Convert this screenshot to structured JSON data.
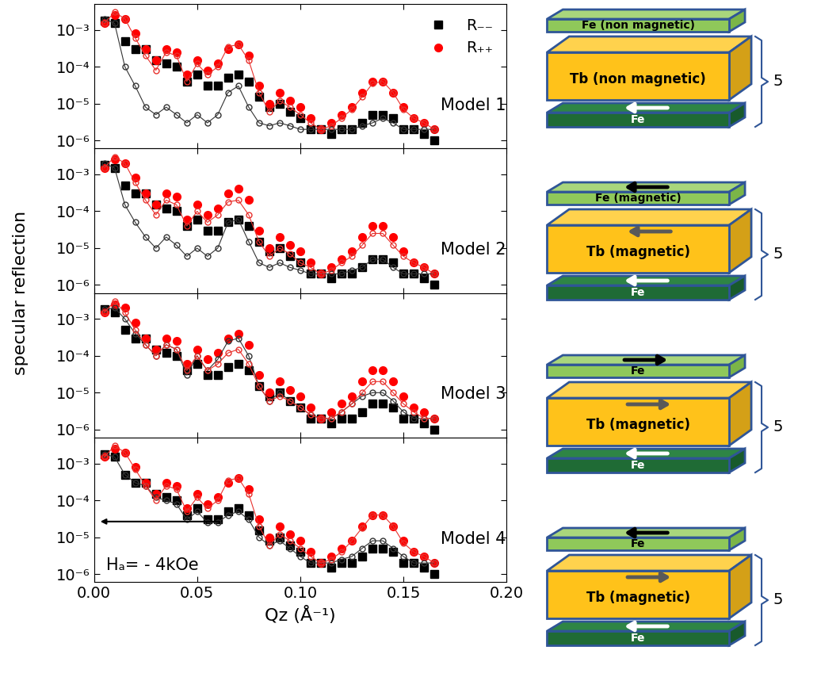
{
  "figure": {
    "ylabel": "specular reflection"
  },
  "chart_data": [
    {
      "type": "scatter",
      "annotation": "Model 1",
      "log": "y",
      "legend": "upper right",
      "tick_labels": "y",
      "xlim": [
        0,
        0.2
      ],
      "ylim": [
        6e-07,
        0.005
      ],
      "xticks": [
        {
          "value": 0,
          "label": "0.00"
        },
        {
          "value": 0.05,
          "label": "0.05"
        },
        {
          "value": 0.1,
          "label": "0.10"
        },
        {
          "value": 0.15,
          "label": "0.15"
        },
        {
          "value": 0.2,
          "label": "0.20"
        }
      ],
      "yticks": [
        {
          "value": 1e-06,
          "label": "10⁻⁶"
        },
        {
          "value": 1e-05,
          "label": "10⁻⁵"
        },
        {
          "value": 0.0001,
          "label": "10⁻⁴"
        },
        {
          "value": 0.001,
          "label": "10⁻³"
        }
      ],
      "x": [
        0.005,
        0.01,
        0.015,
        0.02,
        0.025,
        0.03,
        0.035,
        0.04,
        0.045,
        0.05,
        0.055,
        0.06,
        0.065,
        0.07,
        0.075,
        0.08,
        0.085,
        0.09,
        0.095,
        0.1,
        0.105,
        0.11,
        0.115,
        0.12,
        0.125,
        0.13,
        0.135,
        0.14,
        0.145,
        0.15,
        0.155,
        0.16,
        0.165
      ],
      "series": [
        {
          "name": "R₋₋",
          "color": "#000000",
          "marker": "square",
          "line_style": "none",
          "values": [
            0.0018,
            0.0015,
            0.0005,
            0.0003,
            0.0003,
            0.00015,
            0.00012,
            0.0001,
            4e-05,
            6e-05,
            3e-05,
            3e-05,
            5e-05,
            6e-05,
            4e-05,
            1.5e-05,
            8e-06,
            1e-05,
            6e-06,
            4e-06,
            2e-06,
            2e-06,
            1.5e-06,
            2e-06,
            2e-06,
            3e-06,
            5e-06,
            5e-06,
            4e-06,
            2e-06,
            2e-06,
            1.5e-06,
            1e-06
          ]
        },
        {
          "name": "R₊₊",
          "color": "#ff0000",
          "marker": "circle",
          "line_style": "none",
          "values": [
            0.0015,
            0.0025,
            0.002,
            0.0008,
            0.0003,
            0.00015,
            0.0003,
            0.00025,
            6e-05,
            0.00015,
            8e-05,
            0.00012,
            0.0003,
            0.0004,
            0.0002,
            3e-05,
            1e-05,
            2e-05,
            1.2e-05,
            8e-06,
            4e-06,
            2e-06,
            3e-06,
            5e-06,
            8e-06,
            2e-05,
            4e-05,
            4e-05,
            2e-05,
            8e-06,
            4e-06,
            3e-06,
            2e-06
          ]
        },
        {
          "color": "#333333",
          "marker": "open circle",
          "line_style": "solid",
          "values": [
            0.002,
            0.0015,
            0.0001,
            3e-05,
            8e-06,
            5e-06,
            8e-06,
            5e-06,
            3e-06,
            5e-06,
            3e-06,
            5e-06,
            2e-05,
            3e-05,
            8e-06,
            3e-06,
            2.5e-06,
            3e-06,
            2.5e-06,
            2e-06,
            2e-06,
            2e-06,
            2e-06,
            2e-06,
            2e-06,
            2.5e-06,
            3e-06,
            4e-06,
            3e-06,
            2e-06,
            2e-06,
            2e-06,
            2e-06
          ]
        },
        {
          "color": "#e8322e",
          "marker": "open circle",
          "line_style": "solid",
          "values": [
            0.0015,
            0.003,
            0.002,
            0.0006,
            0.0002,
            8e-05,
            0.00025,
            0.0002,
            4e-05,
            0.00012,
            6e-05,
            0.0001,
            0.00035,
            0.0004,
            0.00015,
            2e-05,
            6e-06,
            1.2e-05,
            8e-06,
            5e-06,
            3e-06,
            2e-06,
            2.5e-06,
            4e-06,
            7e-06,
            1.5e-05,
            3.5e-05,
            4e-05,
            2e-05,
            7e-06,
            4e-06,
            3e-06,
            2e-06
          ]
        }
      ]
    },
    {
      "type": "scatter",
      "annotation": "Model 2",
      "log": "y",
      "tick_labels": "y",
      "xlim": [
        0,
        0.2
      ],
      "ylim": [
        6e-07,
        0.005
      ],
      "xticks": [
        {
          "value": 0,
          "label": "0.00"
        },
        {
          "value": 0.05,
          "label": "0.05"
        },
        {
          "value": 0.1,
          "label": "0.10"
        },
        {
          "value": 0.15,
          "label": "0.15"
        },
        {
          "value": 0.2,
          "label": "0.20"
        }
      ],
      "yticks": [
        {
          "value": 1e-06,
          "label": "10⁻⁶"
        },
        {
          "value": 1e-05,
          "label": "10⁻⁵"
        },
        {
          "value": 0.0001,
          "label": "10⁻⁴"
        },
        {
          "value": 0.001,
          "label": "10⁻³"
        }
      ],
      "x": [
        0.005,
        0.01,
        0.015,
        0.02,
        0.025,
        0.03,
        0.035,
        0.04,
        0.045,
        0.05,
        0.055,
        0.06,
        0.065,
        0.07,
        0.075,
        0.08,
        0.085,
        0.09,
        0.095,
        0.1,
        0.105,
        0.11,
        0.115,
        0.12,
        0.125,
        0.13,
        0.135,
        0.14,
        0.145,
        0.15,
        0.155,
        0.16,
        0.165
      ],
      "series": [
        {
          "name": "R₋₋",
          "color": "#000000",
          "marker": "square",
          "line_style": "none",
          "values": [
            0.0018,
            0.0015,
            0.0005,
            0.0003,
            0.0003,
            0.00015,
            0.00012,
            0.0001,
            4e-05,
            6e-05,
            3e-05,
            3e-05,
            5e-05,
            6e-05,
            4e-05,
            1.5e-05,
            8e-06,
            1e-05,
            6e-06,
            4e-06,
            2e-06,
            2e-06,
            1.5e-06,
            2e-06,
            2e-06,
            3e-06,
            5e-06,
            5e-06,
            4e-06,
            2e-06,
            2e-06,
            1.5e-06,
            1e-06
          ]
        },
        {
          "name": "R₊₊",
          "color": "#ff0000",
          "marker": "circle",
          "line_style": "none",
          "values": [
            0.0015,
            0.0025,
            0.002,
            0.0008,
            0.0003,
            0.00015,
            0.0003,
            0.00025,
            6e-05,
            0.00015,
            8e-05,
            0.00012,
            0.0003,
            0.0004,
            0.0002,
            3e-05,
            1e-05,
            2e-05,
            1.2e-05,
            8e-06,
            4e-06,
            2e-06,
            3e-06,
            5e-06,
            8e-06,
            2e-05,
            4e-05,
            4e-05,
            2e-05,
            8e-06,
            4e-06,
            3e-06,
            2e-06
          ]
        },
        {
          "color": "#333333",
          "marker": "open circle",
          "line_style": "solid",
          "values": [
            0.002,
            0.0015,
            0.00015,
            5e-05,
            2e-05,
            1e-05,
            2e-05,
            1.2e-05,
            6e-06,
            1e-05,
            6e-06,
            1e-05,
            5e-05,
            6e-05,
            1.5e-05,
            4e-06,
            3e-06,
            4e-06,
            3e-06,
            2.5e-06,
            2e-06,
            2e-06,
            2e-06,
            2e-06,
            2.5e-06,
            3e-06,
            5e-06,
            5e-06,
            3e-06,
            2e-06,
            2e-06,
            2e-06,
            2e-06
          ]
        },
        {
          "color": "#e8322e",
          "marker": "open circle",
          "line_style": "solid",
          "values": [
            0.0015,
            0.003,
            0.002,
            0.0006,
            0.0002,
            8e-05,
            0.0002,
            0.00015,
            4e-05,
            0.0001,
            5e-05,
            8e-05,
            0.00018,
            0.0002,
            8e-05,
            1.5e-05,
            6e-06,
            1e-05,
            7e-06,
            4e-06,
            3e-06,
            2e-06,
            2.5e-06,
            4e-06,
            6e-06,
            1.2e-05,
            2.5e-05,
            2.5e-05,
            1.2e-05,
            6e-06,
            4e-06,
            3e-06,
            2e-06
          ]
        }
      ]
    },
    {
      "type": "scatter",
      "annotation": "Model 3",
      "log": "y",
      "tick_labels": "y",
      "xlim": [
        0,
        0.2
      ],
      "ylim": [
        6e-07,
        0.005
      ],
      "xticks": [
        {
          "value": 0,
          "label": "0.00"
        },
        {
          "value": 0.05,
          "label": "0.05"
        },
        {
          "value": 0.1,
          "label": "0.10"
        },
        {
          "value": 0.15,
          "label": "0.15"
        },
        {
          "value": 0.2,
          "label": "0.20"
        }
      ],
      "yticks": [
        {
          "value": 1e-06,
          "label": "10⁻⁶"
        },
        {
          "value": 1e-05,
          "label": "10⁻⁵"
        },
        {
          "value": 0.0001,
          "label": "10⁻⁴"
        },
        {
          "value": 0.001,
          "label": "10⁻³"
        }
      ],
      "x": [
        0.005,
        0.01,
        0.015,
        0.02,
        0.025,
        0.03,
        0.035,
        0.04,
        0.045,
        0.05,
        0.055,
        0.06,
        0.065,
        0.07,
        0.075,
        0.08,
        0.085,
        0.09,
        0.095,
        0.1,
        0.105,
        0.11,
        0.115,
        0.12,
        0.125,
        0.13,
        0.135,
        0.14,
        0.145,
        0.15,
        0.155,
        0.16,
        0.165
      ],
      "series": [
        {
          "name": "R₋₋",
          "color": "#000000",
          "marker": "square",
          "line_style": "none",
          "values": [
            0.0018,
            0.0015,
            0.0005,
            0.0003,
            0.0003,
            0.00015,
            0.00012,
            0.0001,
            4e-05,
            6e-05,
            3e-05,
            3e-05,
            5e-05,
            6e-05,
            4e-05,
            1.5e-05,
            8e-06,
            1e-05,
            6e-06,
            4e-06,
            2e-06,
            2e-06,
            1.5e-06,
            2e-06,
            2e-06,
            3e-06,
            5e-06,
            5e-06,
            4e-06,
            2e-06,
            2e-06,
            1.5e-06,
            1e-06
          ]
        },
        {
          "name": "R₊₊",
          "color": "#ff0000",
          "marker": "circle",
          "line_style": "none",
          "values": [
            0.0015,
            0.0025,
            0.002,
            0.0008,
            0.0003,
            0.00015,
            0.0003,
            0.00025,
            6e-05,
            0.00015,
            8e-05,
            0.00012,
            0.0003,
            0.0004,
            0.0002,
            3e-05,
            1e-05,
            2e-05,
            1.2e-05,
            8e-06,
            4e-06,
            2e-06,
            3e-06,
            5e-06,
            8e-06,
            2e-05,
            4e-05,
            4e-05,
            2e-05,
            8e-06,
            4e-06,
            3e-06,
            2e-06
          ]
        },
        {
          "color": "#333333",
          "marker": "open circle",
          "line_style": "solid",
          "values": [
            0.0018,
            0.002,
            0.001,
            0.0004,
            0.0002,
            0.0001,
            0.0002,
            0.00015,
            3e-05,
            0.0001,
            4e-05,
            8e-05,
            0.00025,
            0.0003,
            0.0001,
            1.5e-05,
            6e-06,
            1e-05,
            6e-06,
            4e-06,
            2.5e-06,
            2e-06,
            2e-06,
            3e-06,
            5e-06,
            8e-06,
            1e-05,
            1e-05,
            6e-06,
            3e-06,
            2e-06,
            2e-06,
            2e-06
          ]
        },
        {
          "color": "#e8322e",
          "marker": "open circle",
          "line_style": "solid",
          "values": [
            0.0015,
            0.003,
            0.0015,
            0.0005,
            0.0002,
            0.0001,
            0.0002,
            0.00015,
            4e-05,
            0.0001,
            4e-05,
            6e-05,
            0.00012,
            0.00015,
            6e-05,
            1.5e-05,
            6e-06,
            8e-06,
            6e-06,
            4e-06,
            2.5e-06,
            2e-06,
            2e-06,
            3e-06,
            5e-06,
            1e-05,
            2e-05,
            2e-05,
            1e-05,
            5e-06,
            3e-06,
            2e-06,
            2e-06
          ]
        }
      ]
    },
    {
      "type": "scatter",
      "annotation": "Model 4",
      "field_annotation": "Hₐ= - 4kOe",
      "log": "y",
      "xlabel": "Qz (Å⁻¹)",
      "xlim": [
        0,
        0.2
      ],
      "ylim": [
        6e-07,
        0.005
      ],
      "xticks": [
        {
          "value": 0,
          "label": "0.00"
        },
        {
          "value": 0.05,
          "label": "0.05"
        },
        {
          "value": 0.1,
          "label": "0.10"
        },
        {
          "value": 0.15,
          "label": "0.15"
        },
        {
          "value": 0.2,
          "label": "0.20"
        }
      ],
      "yticks": [
        {
          "value": 1e-06,
          "label": "10⁻⁶"
        },
        {
          "value": 1e-05,
          "label": "10⁻⁵"
        },
        {
          "value": 0.0001,
          "label": "10⁻⁴"
        },
        {
          "value": 0.001,
          "label": "10⁻³"
        }
      ],
      "x": [
        0.005,
        0.01,
        0.015,
        0.02,
        0.025,
        0.03,
        0.035,
        0.04,
        0.045,
        0.05,
        0.055,
        0.06,
        0.065,
        0.07,
        0.075,
        0.08,
        0.085,
        0.09,
        0.095,
        0.1,
        0.105,
        0.11,
        0.115,
        0.12,
        0.125,
        0.13,
        0.135,
        0.14,
        0.145,
        0.15,
        0.155,
        0.16,
        0.165
      ],
      "series": [
        {
          "name": "R₋₋",
          "color": "#000000",
          "marker": "square",
          "line_style": "none",
          "values": [
            0.0018,
            0.0015,
            0.0005,
            0.0003,
            0.0003,
            0.00015,
            0.00012,
            0.0001,
            4e-05,
            6e-05,
            3e-05,
            3e-05,
            5e-05,
            6e-05,
            4e-05,
            1.5e-05,
            8e-06,
            1e-05,
            6e-06,
            4e-06,
            2e-06,
            2e-06,
            1.5e-06,
            2e-06,
            2e-06,
            3e-06,
            5e-06,
            5e-06,
            4e-06,
            2e-06,
            2e-06,
            1.5e-06,
            1e-06
          ]
        },
        {
          "name": "R₊₊",
          "color": "#ff0000",
          "marker": "circle",
          "line_style": "none",
          "values": [
            0.0015,
            0.0025,
            0.002,
            0.0008,
            0.0003,
            0.00015,
            0.0003,
            0.00025,
            6e-05,
            0.00015,
            8e-05,
            0.00012,
            0.0003,
            0.0004,
            0.0002,
            3e-05,
            1e-05,
            2e-05,
            1.2e-05,
            8e-06,
            4e-06,
            2e-06,
            3e-06,
            5e-06,
            8e-06,
            2e-05,
            4e-05,
            4e-05,
            2e-05,
            8e-06,
            4e-06,
            3e-06,
            2e-06
          ]
        },
        {
          "color": "#333333",
          "marker": "open circle",
          "line_style": "solid",
          "values": [
            0.0018,
            0.0015,
            0.0005,
            0.0003,
            0.00025,
            0.00012,
            0.0001,
            8e-05,
            3e-05,
            5e-05,
            2.5e-05,
            2.5e-05,
            4e-05,
            5e-05,
            3e-05,
            1e-05,
            6e-06,
            8e-06,
            5e-06,
            3e-06,
            2e-06,
            2e-06,
            2e-06,
            2.5e-06,
            3e-06,
            5e-06,
            8e-06,
            8e-06,
            5e-06,
            3e-06,
            2e-06,
            2e-06,
            2e-06
          ]
        },
        {
          "color": "#e8322e",
          "marker": "open circle",
          "line_style": "solid",
          "values": [
            0.0015,
            0.003,
            0.002,
            0.0007,
            0.00025,
            0.0001,
            0.00025,
            0.0002,
            5e-05,
            0.00012,
            6e-05,
            0.0001,
            0.00035,
            0.0004,
            0.00015,
            2e-05,
            6e-06,
            1.2e-05,
            8e-06,
            5e-06,
            3e-06,
            2e-06,
            2.5e-06,
            4e-06,
            8e-06,
            1.8e-05,
            4e-05,
            4e-05,
            2e-05,
            7e-06,
            4e-06,
            3e-06,
            2e-06
          ]
        }
      ]
    }
  ],
  "diagram": {
    "models": [
      {
        "layers": [
          "Fe (non magnetic)",
          "Tb (non magnetic)",
          "Fe"
        ],
        "repeat": "5"
      },
      {
        "layers": [
          "Fe (magnetic)",
          "Tb (magnetic)",
          "Fe"
        ],
        "repeat": "5"
      },
      {
        "layers": [
          "Fe",
          "Tb (magnetic)",
          "Fe"
        ],
        "repeat": "5"
      },
      {
        "layers": [
          "Fe",
          "Tb (magnetic)",
          "Fe"
        ],
        "repeat": "5"
      }
    ]
  }
}
